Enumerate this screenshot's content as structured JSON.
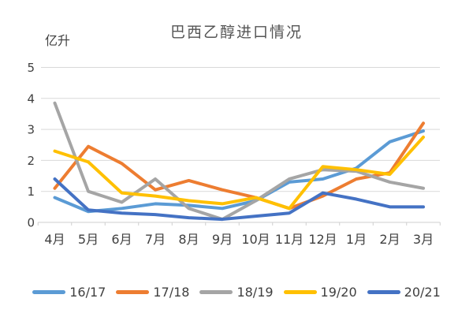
{
  "chart_data": {
    "type": "line",
    "title": "巴西乙醇进口情况",
    "unit_label": "亿升",
    "categories": [
      "4月",
      "5月",
      "6月",
      "7月",
      "8月",
      "9月",
      "10月",
      "11月",
      "12月",
      "1月",
      "2月",
      "3月"
    ],
    "series": [
      {
        "name": "16/17",
        "color": "#5B9BD5",
        "values": [
          0.8,
          0.35,
          0.45,
          0.6,
          0.55,
          0.45,
          0.7,
          1.3,
          1.4,
          1.75,
          2.6,
          2.95
        ]
      },
      {
        "name": "17/18",
        "color": "#ED7D31",
        "values": [
          1.1,
          2.45,
          1.9,
          1.05,
          1.35,
          1.05,
          0.8,
          0.45,
          0.85,
          1.4,
          1.6,
          3.2
        ]
      },
      {
        "name": "18/19",
        "color": "#A5A5A5",
        "values": [
          3.85,
          1.0,
          0.65,
          1.4,
          0.45,
          0.1,
          0.7,
          1.4,
          1.7,
          1.65,
          1.3,
          1.1
        ]
      },
      {
        "name": "19/20",
        "color": "#FFC000",
        "values": [
          2.3,
          1.95,
          0.95,
          0.85,
          0.7,
          0.6,
          0.8,
          0.45,
          1.8,
          1.7,
          1.55,
          2.75
        ]
      },
      {
        "name": "20/21",
        "color": "#4472C4",
        "values": [
          1.4,
          0.4,
          0.3,
          0.25,
          0.15,
          0.1,
          0.2,
          0.3,
          0.95,
          0.75,
          0.5,
          0.5
        ]
      }
    ],
    "y_ticks": [
      0,
      1,
      2,
      3,
      4,
      5
    ],
    "ylim": [
      0,
      5
    ],
    "grid": true,
    "legend_position": "bottom",
    "grid_color": "#D9D9D9",
    "axis_text_color": "#3f3f3f"
  }
}
